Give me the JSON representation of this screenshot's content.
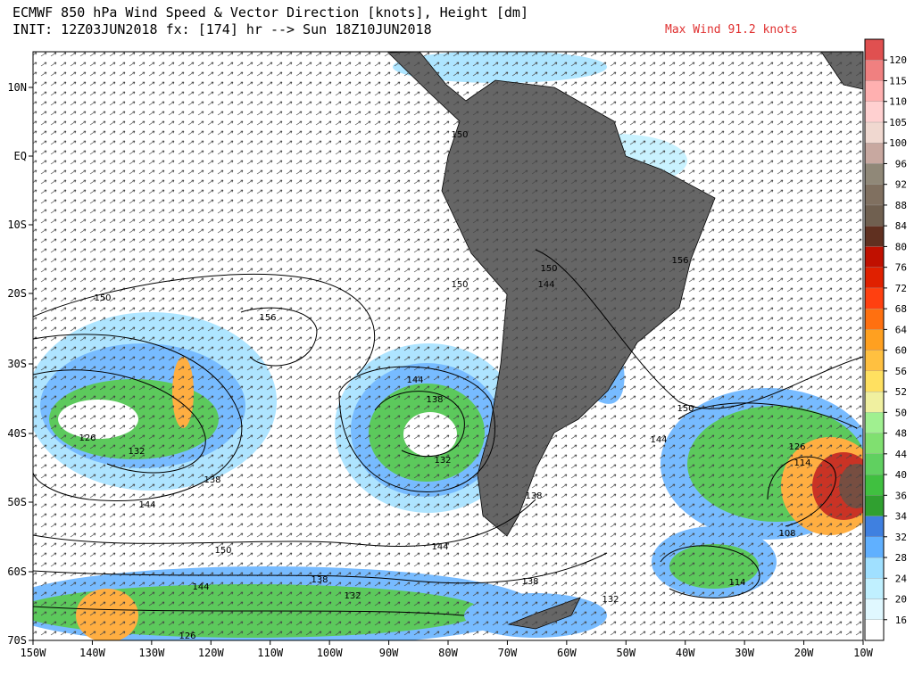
{
  "header": {
    "title": "ECMWF 850 hPa Wind Speed & Vector Direction [knots], Height [dm]",
    "init": "INIT: 12Z03JUN2018 fx: [174] hr --> Sun 18Z10JUN2018",
    "max_wind": "Max Wind 91.2 knots"
  },
  "map": {
    "lat_labels": [
      "10N",
      "EQ",
      "10S",
      "20S",
      "30S",
      "40S",
      "50S",
      "60S",
      "70S"
    ],
    "lon_labels": [
      "150W",
      "140W",
      "130W",
      "120W",
      "110W",
      "100W",
      "90W",
      "80W",
      "70W",
      "60W",
      "50W",
      "40W",
      "30W",
      "20W",
      "10W"
    ],
    "contour_labels": [
      "150",
      "156",
      "150",
      "144",
      "138",
      "132",
      "126",
      "132",
      "138",
      "144",
      "150",
      "144",
      "138",
      "132",
      "144",
      "138",
      "138",
      "132",
      "126",
      "150",
      "144",
      "126",
      "114",
      "108",
      "114",
      "156",
      "150",
      "150",
      "144"
    ]
  },
  "colorbar": {
    "ticks": [
      16,
      20,
      24,
      28,
      32,
      34,
      36,
      40,
      44,
      48,
      50,
      52,
      56,
      60,
      64,
      68,
      72,
      76,
      80,
      84,
      88,
      92,
      96,
      100,
      105,
      110,
      115,
      120
    ],
    "colors": [
      "#ffffff",
      "#e0f8ff",
      "#c0f0ff",
      "#a0e0ff",
      "#60b0ff",
      "#3f80e0",
      "#30a030",
      "#40c040",
      "#60d060",
      "#80e070",
      "#a0f090",
      "#f0f0a0",
      "#ffe060",
      "#ffc040",
      "#ffa020",
      "#ff7010",
      "#ff4010",
      "#e02000",
      "#c01000",
      "#603020",
      "#706050",
      "#807060",
      "#908878",
      "#c8a8a0",
      "#f0d8d0",
      "#ffd0d0",
      "#ffb0b0",
      "#f08080",
      "#e05050"
    ]
  }
}
